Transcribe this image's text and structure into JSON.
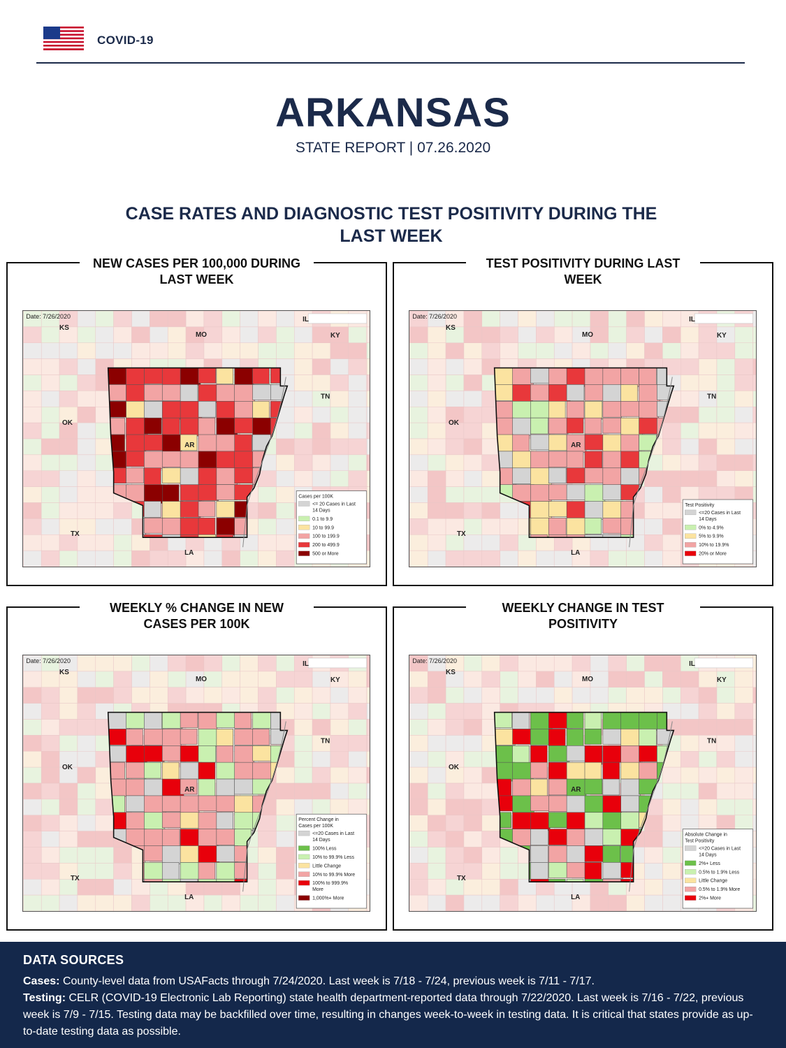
{
  "header": {
    "label": "COVID-19",
    "flag_icon": "us-flag-icon"
  },
  "title": "ARKANSAS",
  "subtitle": "STATE REPORT | 07.26.2020",
  "section_title": "CASE RATES AND DIAGNOSTIC TEST POSITIVITY DURING THE LAST WEEK",
  "colors": {
    "navy": "#1b2a4a",
    "footer_bg": "#14284b",
    "gray": "#d4d4d4",
    "light_green": "#c9f0b0",
    "green": "#6cc04a",
    "yellow": "#fbe3a0",
    "pink": "#f2a4a4",
    "red": "#e8383b",
    "bright_red": "#e8000b",
    "dark_red": "#8b0000"
  },
  "panels": [
    {
      "title_line1": "NEW CASES PER 100,000 DURING",
      "title_line2": "LAST WEEK",
      "date": "Date: 7/26/2020",
      "legend_title": [
        "Cases per 100K"
      ],
      "legend": [
        {
          "label": [
            "<= 20 Cases in Last",
            "14 Days"
          ],
          "color": "#d4d4d4"
        },
        {
          "label": [
            "0.1 to 9.9"
          ],
          "color": "#c9f0b0"
        },
        {
          "label": [
            "10 to 99.9"
          ],
          "color": "#fbe3a0"
        },
        {
          "label": [
            "100 to 199.9"
          ],
          "color": "#f2a4a4"
        },
        {
          "label": [
            "200 to 499.9"
          ],
          "color": "#e8383b"
        },
        {
          "label": [
            "500 or More"
          ],
          "color": "#8b0000"
        }
      ],
      "palette": [
        "#e8383b",
        "#f2a4a4",
        "#e8383b",
        "#d4d4d4",
        "#fbe3a0",
        "#e8383b",
        "#f2a4a4",
        "#e8383b",
        "#8b0000"
      ]
    },
    {
      "title_line1": "TEST POSITIVITY DURING LAST",
      "title_line2": "WEEK",
      "date": "Date: 7/26/2020",
      "legend_title": [
        "Test Positivity"
      ],
      "legend": [
        {
          "label": [
            "<=20 Cases in Last",
            "14 Days"
          ],
          "color": "#d4d4d4"
        },
        {
          "label": [
            "0% to 4.9%"
          ],
          "color": "#c9f0b0"
        },
        {
          "label": [
            "5% to 9.9%"
          ],
          "color": "#fbe3a0"
        },
        {
          "label": [
            "10% to 19.9%"
          ],
          "color": "#f2a4a4"
        },
        {
          "label": [
            "20% or More"
          ],
          "color": "#e8000b"
        }
      ],
      "palette": [
        "#f2a4a4",
        "#fbe3a0",
        "#d4d4d4",
        "#f2a4a4",
        "#c9f0b0",
        "#f2a4a4",
        "#fbe3a0",
        "#d4d4d4",
        "#e8383b"
      ]
    },
    {
      "title_line1": "WEEKLY % CHANGE IN NEW",
      "title_line2": "CASES PER 100K",
      "date": "Date: 7/26/2020",
      "legend_title": [
        "Percent Change in",
        "Cases per 100K"
      ],
      "legend": [
        {
          "label": [
            "<=20 Cases in Last",
            "14 Days"
          ],
          "color": "#d4d4d4"
        },
        {
          "label": [
            "100% Less"
          ],
          "color": "#6cc04a"
        },
        {
          "label": [
            "10% to 99.9% Less"
          ],
          "color": "#c9f0b0"
        },
        {
          "label": [
            "Little Change"
          ],
          "color": "#fbe3a0"
        },
        {
          "label": [
            "10% to 99.9% More"
          ],
          "color": "#f2a4a4"
        },
        {
          "label": [
            "100% to 999.9%",
            "More"
          ],
          "color": "#e8000b"
        },
        {
          "label": [
            "1,000%+ More"
          ],
          "color": "#8b0000"
        }
      ],
      "palette": [
        "#f2a4a4",
        "#c9f0b0",
        "#d4d4d4",
        "#f2a4a4",
        "#e8000b",
        "#fbe3a0",
        "#c9f0b0",
        "#f2a4a4",
        "#d4d4d4"
      ]
    },
    {
      "title_line1": "WEEKLY CHANGE IN TEST",
      "title_line2": "POSITIVITY",
      "date": "Date: 7/26/2020",
      "legend_title": [
        "Absolute Change in",
        "Test Positivity"
      ],
      "legend": [
        {
          "label": [
            "<=20 Cases in Last",
            "14 Days"
          ],
          "color": "#d4d4d4"
        },
        {
          "label": [
            "2%+ Less"
          ],
          "color": "#6cc04a"
        },
        {
          "label": [
            "0.5% to 1.9% Less"
          ],
          "color": "#c9f0b0"
        },
        {
          "label": [
            "Little Change"
          ],
          "color": "#fbe3a0"
        },
        {
          "label": [
            "0.5% to 1.9% More"
          ],
          "color": "#f2a4a4"
        },
        {
          "label": [
            "2%+ More"
          ],
          "color": "#e8000b"
        }
      ],
      "palette": [
        "#6cc04a",
        "#e8000b",
        "#d4d4d4",
        "#6cc04a",
        "#c9f0b0",
        "#e8000b",
        "#f2a4a4",
        "#6cc04a",
        "#fbe3a0"
      ]
    }
  ],
  "map_labels": {
    "ks": "KS",
    "mo": "MO",
    "ky": "KY",
    "tn": "TN",
    "ok": "OK",
    "ar": "AR",
    "tx": "TX",
    "la": "LA",
    "il": "IL"
  },
  "footer": {
    "title": "DATA SOURCES",
    "cases_label": "Cases:",
    "cases_text": "County-level data from USAFacts through 7/24/2020. Last week is 7/18 - 7/24, previous week is 7/11 - 7/17.",
    "testing_label": "Testing:",
    "testing_text": "CELR (COVID-19 Electronic Lab Reporting) state health department-reported data through 7/22/2020. Last week is 7/16 - 7/22, previous week is 7/9 - 7/15. Testing data may be backfilled over time, resulting in changes week-to-week in testing data. It is critical that states provide as up-to-date testing data as possible."
  }
}
